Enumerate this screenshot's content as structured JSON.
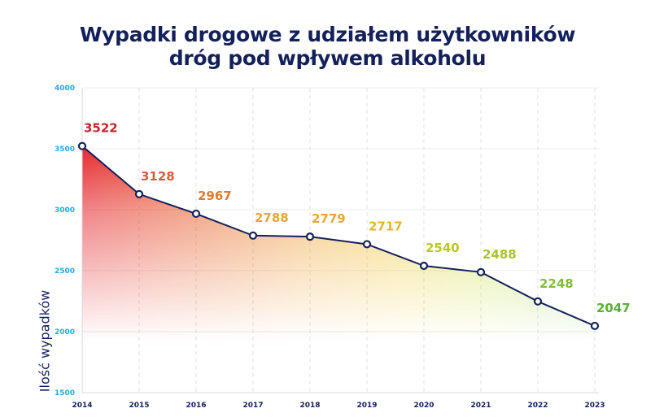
{
  "chart_data": {
    "type": "area",
    "title_line1": "Wypadki drogowe z udziałem użytkowników",
    "title_line2": "dróg pod wpływem alkoholu",
    "xlabel": "",
    "ylabel": "Ilość wypadków",
    "x": [
      "2014",
      "2015",
      "2016",
      "2017",
      "2018",
      "2019",
      "2020",
      "2021",
      "2022",
      "2023"
    ],
    "values": [
      3522,
      3128,
      2967,
      2788,
      2779,
      2717,
      2540,
      2488,
      2248,
      2047
    ],
    "ylim": [
      1500,
      4000
    ],
    "yticks": [
      1500,
      2000,
      2500,
      3000,
      3500,
      4000
    ],
    "grid": true,
    "label_colors": [
      "#c8242a",
      "#e0583c",
      "#e07a2e",
      "#e8a63a",
      "#e8a63a",
      "#e2b62a",
      "#b9c924",
      "#a6c626",
      "#7fbf3c",
      "#5cb034"
    ],
    "line_color": "#14205a",
    "tick_color": "#29a8e0"
  }
}
